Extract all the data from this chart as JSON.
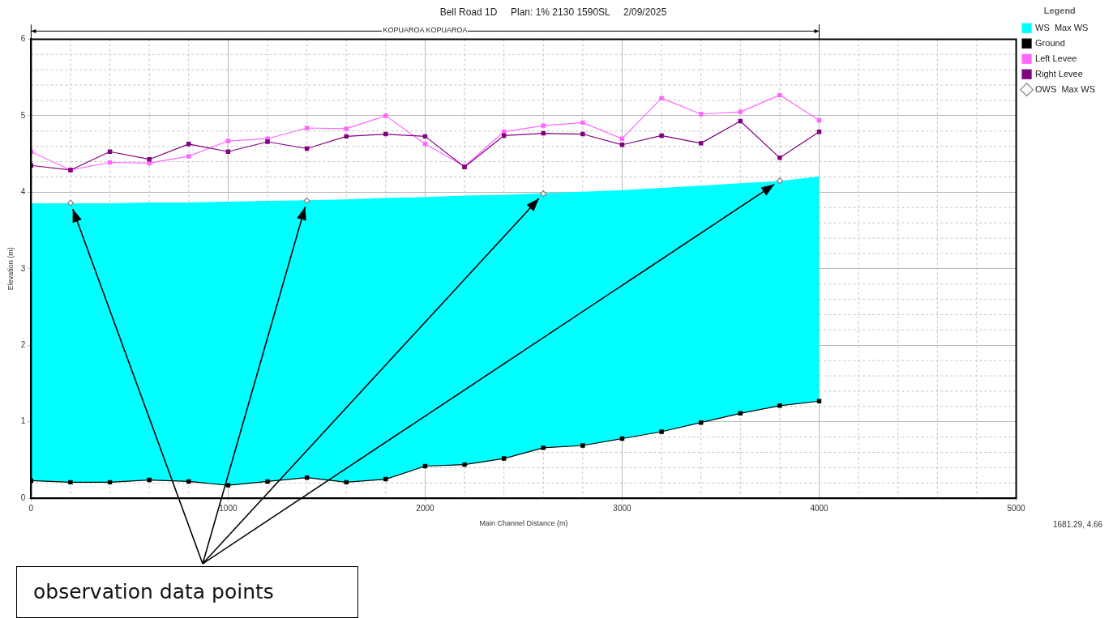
{
  "chart_data": {
    "type": "line",
    "title": "Bell Road 1D     Plan: 1% 2130 1590SL     2/09/2025",
    "subtitle": "KOPUAROA KOPUAROA",
    "xlabel": "Main Channel Distance (m)",
    "ylabel": "Elevation (m)",
    "legend_title": "Legend",
    "legend": "right",
    "grid": true,
    "annotations": [
      "1681.29, 4.66",
      "observation data points"
    ],
    "x": [
      0,
      200,
      400,
      600,
      800,
      1000,
      1200,
      1400,
      1600,
      1800,
      2000,
      2200,
      2400,
      2600,
      2800,
      3000,
      3200,
      3400,
      3600,
      3800,
      4000
    ],
    "series": [
      {
        "name": "WS  Max WS",
        "type": "area",
        "color": "#00ffff",
        "marker": "none",
        "values": [
          3.85,
          3.85,
          3.85,
          3.86,
          3.86,
          3.87,
          3.88,
          3.89,
          3.9,
          3.92,
          3.93,
          3.95,
          3.96,
          3.98,
          4.0,
          4.02,
          4.05,
          4.08,
          4.11,
          4.14,
          4.2
        ]
      },
      {
        "name": "Ground",
        "type": "line",
        "color": "#000000",
        "marker": "square",
        "values": [
          0.23,
          0.21,
          0.21,
          0.24,
          0.22,
          0.17,
          0.22,
          0.27,
          0.21,
          0.25,
          0.42,
          0.44,
          0.52,
          0.66,
          0.69,
          0.78,
          0.87,
          0.99,
          1.11,
          1.21,
          1.27
        ]
      },
      {
        "name": "Left Levee",
        "type": "line",
        "color": "#ff66ff",
        "marker": "square",
        "values": [
          4.53,
          4.29,
          4.39,
          4.38,
          4.47,
          4.67,
          4.7,
          4.84,
          4.83,
          5.0,
          4.63,
          4.34,
          4.79,
          4.87,
          4.91,
          4.7,
          5.23,
          5.02,
          5.05,
          5.27,
          4.94
        ]
      },
      {
        "name": "Right Levee",
        "type": "line",
        "color": "#800080",
        "marker": "square",
        "values": [
          4.35,
          4.29,
          4.53,
          4.43,
          4.63,
          4.53,
          4.66,
          4.57,
          4.73,
          4.76,
          4.73,
          4.33,
          4.74,
          4.77,
          4.76,
          4.62,
          4.74,
          4.64,
          4.93,
          4.45,
          4.79
        ]
      },
      {
        "name": "OWS  Max WS",
        "type": "scatter",
        "color": "#808080",
        "marker": "diamond",
        "x": [
          200,
          1400,
          2600,
          3800
        ],
        "values": [
          3.86,
          3.89,
          3.98,
          4.15
        ]
      }
    ],
    "xlim": [
      0,
      5000
    ],
    "xticks": [
      0,
      {
        "value": 200,
        "label": null
      },
      {
        "value": 400,
        "label": null
      },
      {
        "value": 600,
        "label": null
      },
      {
        "value": 800,
        "label": null
      },
      1000,
      {
        "value": 1200,
        "label": null
      },
      {
        "value": 1400,
        "label": null
      },
      {
        "value": 1600,
        "label": null
      },
      {
        "value": 1800,
        "label": null
      },
      2000,
      {
        "value": 2200,
        "label": null
      },
      {
        "value": 2400,
        "label": null
      },
      {
        "value": 2600,
        "label": null
      },
      {
        "value": 2800,
        "label": null
      },
      3000,
      {
        "value": 3200,
        "label": null
      },
      {
        "value": 3400,
        "label": null
      },
      {
        "value": 3600,
        "label": null
      },
      {
        "value": 3800,
        "label": null
      },
      4000,
      {
        "value": 4200,
        "label": null
      },
      {
        "value": 4400,
        "label": null
      },
      {
        "value": 4600,
        "label": null
      },
      {
        "value": 4800,
        "label": null
      },
      5000
    ],
    "ylim": [
      0,
      6
    ],
    "yticks": [
      0,
      {
        "value": 0.2,
        "label": null
      },
      {
        "value": 0.4,
        "label": null
      },
      {
        "value": 0.6,
        "label": null
      },
      {
        "value": 0.8,
        "label": null
      },
      1,
      {
        "value": 1.2,
        "label": null
      },
      {
        "value": 1.4,
        "label": null
      },
      {
        "value": 1.6,
        "label": null
      },
      {
        "value": 1.8,
        "label": null
      },
      2,
      {
        "value": 2.2,
        "label": null
      },
      {
        "value": 2.4,
        "label": null
      },
      {
        "value": 2.6,
        "label": null
      },
      {
        "value": 2.8,
        "label": null
      },
      3,
      {
        "value": 3.2,
        "label": null
      },
      {
        "value": 3.4,
        "label": null
      },
      {
        "value": 3.6,
        "label": null
      },
      {
        "value": 3.8,
        "label": null
      },
      4,
      {
        "value": 4.2,
        "label": null
      },
      {
        "value": 4.4,
        "label": null
      },
      {
        "value": 4.6,
        "label": null
      },
      {
        "value": 4.8,
        "label": null
      },
      5,
      {
        "value": 5.2,
        "label": null
      },
      {
        "value": 5.4,
        "label": null
      },
      {
        "value": 5.6,
        "label": null
      },
      {
        "value": 5.8,
        "label": null
      },
      6
    ]
  }
}
